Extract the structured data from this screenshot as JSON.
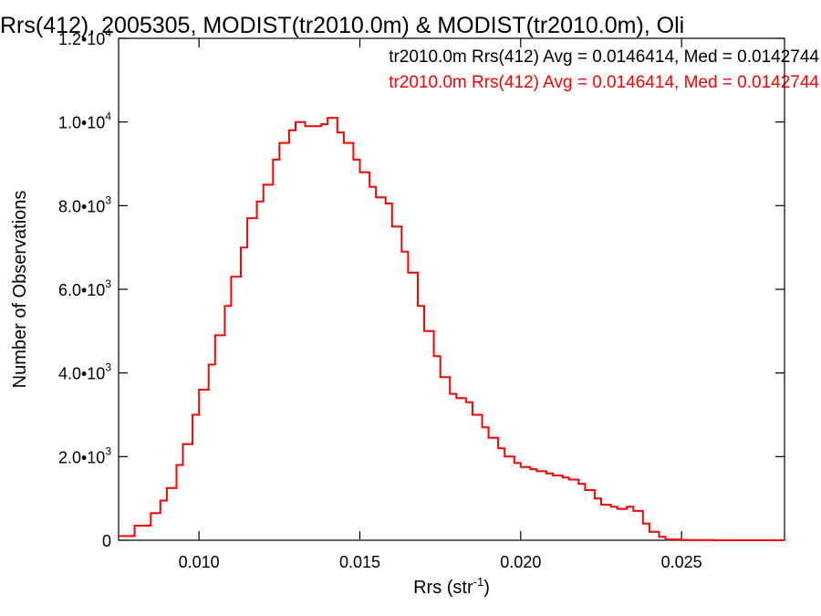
{
  "chart_data": {
    "type": "line",
    "title": "Rrs(412), 2005305, MODIST(tr2010.0m) & MODIST(tr2010.0m), Oli",
    "xlabel": "Rrs (str",
    "xlabel_sup": "-1",
    "xlabel_close": ")",
    "ylabel": "Number of Observations",
    "xlim": [
      0.0075,
      0.0282
    ],
    "ylim": [
      0,
      12000
    ],
    "grid": false,
    "step": true,
    "x_ticks": [
      {
        "value": 0.01,
        "label": "0.010"
      },
      {
        "value": 0.015,
        "label": "0.015"
      },
      {
        "value": 0.02,
        "label": "0.020"
      },
      {
        "value": 0.025,
        "label": "0.025"
      }
    ],
    "y_ticks": [
      {
        "value": 0,
        "mant": "0",
        "exp": ""
      },
      {
        "value": 2000,
        "mant": "2.0•10",
        "exp": "3"
      },
      {
        "value": 4000,
        "mant": "4.0•10",
        "exp": "3"
      },
      {
        "value": 6000,
        "mant": "6.0•10",
        "exp": "3"
      },
      {
        "value": 8000,
        "mant": "8.0•10",
        "exp": "3"
      },
      {
        "value": 10000,
        "mant": "1.0•10",
        "exp": "4"
      },
      {
        "value": 12000,
        "mant": "1.2•10",
        "exp": "4"
      }
    ],
    "legend": {
      "position": "top-right",
      "entries": [
        {
          "text": "tr2010.0m Rrs(412) Avg = 0.0146414, Med = 0.0142744",
          "color": "#000000"
        },
        {
          "text": "tr2010.0m Rrs(412) Avg = 0.0146414, Med = 0.0142744",
          "color": "#ff0000"
        }
      ]
    },
    "series": [
      {
        "color": "#ff0000",
        "points": [
          [
            0.0075,
            100
          ],
          [
            0.008,
            350
          ],
          [
            0.0085,
            650
          ],
          [
            0.0088,
            950
          ],
          [
            0.009,
            1250
          ],
          [
            0.0093,
            1800
          ],
          [
            0.0095,
            2300
          ],
          [
            0.0098,
            3000
          ],
          [
            0.01,
            3600
          ],
          [
            0.0103,
            4200
          ],
          [
            0.0105,
            4900
          ],
          [
            0.0108,
            5600
          ],
          [
            0.011,
            6300
          ],
          [
            0.0113,
            7000
          ],
          [
            0.0115,
            7700
          ],
          [
            0.0118,
            8100
          ],
          [
            0.012,
            8500
          ],
          [
            0.0123,
            9100
          ],
          [
            0.0125,
            9500
          ],
          [
            0.0128,
            9800
          ],
          [
            0.013,
            10000
          ],
          [
            0.0133,
            9900
          ],
          [
            0.0135,
            9900
          ],
          [
            0.0138,
            9950
          ],
          [
            0.014,
            10100
          ],
          [
            0.0143,
            9750
          ],
          [
            0.0145,
            9500
          ],
          [
            0.0148,
            9100
          ],
          [
            0.015,
            8800
          ],
          [
            0.0153,
            8450
          ],
          [
            0.0155,
            8200
          ],
          [
            0.0158,
            8050
          ],
          [
            0.016,
            7500
          ],
          [
            0.0163,
            6900
          ],
          [
            0.0165,
            6400
          ],
          [
            0.0168,
            5600
          ],
          [
            0.017,
            5000
          ],
          [
            0.0173,
            4400
          ],
          [
            0.0175,
            3900
          ],
          [
            0.0178,
            3500
          ],
          [
            0.018,
            3400
          ],
          [
            0.0183,
            3300
          ],
          [
            0.0185,
            3000
          ],
          [
            0.0188,
            2700
          ],
          [
            0.019,
            2450
          ],
          [
            0.0193,
            2200
          ],
          [
            0.0195,
            2000
          ],
          [
            0.0198,
            1850
          ],
          [
            0.02,
            1750
          ],
          [
            0.0203,
            1700
          ],
          [
            0.0205,
            1650
          ],
          [
            0.0208,
            1600
          ],
          [
            0.021,
            1550
          ],
          [
            0.0213,
            1500
          ],
          [
            0.0215,
            1450
          ],
          [
            0.0218,
            1350
          ],
          [
            0.022,
            1200
          ],
          [
            0.0223,
            1000
          ],
          [
            0.0225,
            850
          ],
          [
            0.0228,
            800
          ],
          [
            0.023,
            750
          ],
          [
            0.0233,
            800
          ],
          [
            0.0235,
            700
          ],
          [
            0.0238,
            400
          ],
          [
            0.024,
            200
          ],
          [
            0.0243,
            80
          ],
          [
            0.0245,
            20
          ],
          [
            0.025,
            5
          ],
          [
            0.026,
            0
          ],
          [
            0.027,
            0
          ],
          [
            0.0282,
            0
          ]
        ]
      }
    ]
  }
}
